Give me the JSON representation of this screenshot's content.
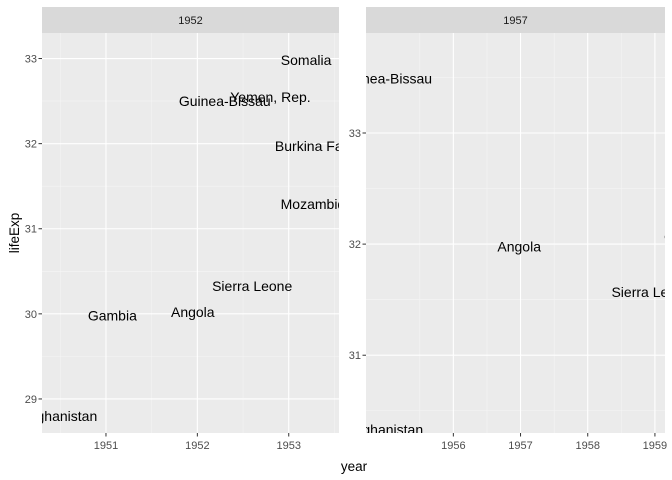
{
  "chart_data": {
    "type": "scatter",
    "style": "ggplot2-facet-text-labels",
    "colors": {
      "panel": "#EBEBEB",
      "grid_major": "#FFFFFF",
      "grid_minor": "#F5F5F5",
      "strip": "#D9D9D9",
      "text": "#000000",
      "tick_text": "#4D4D4D"
    },
    "xlabel": "year",
    "ylabel": "lifeExp",
    "facets": [
      {
        "strip": "1952",
        "xlim": [
          1950.3,
          1953.55
        ],
        "ylim": [
          28.6,
          33.3
        ],
        "xticks": [
          1951,
          1952,
          1953
        ],
        "yticks": [
          29,
          30,
          31,
          32,
          33
        ],
        "points": [
          {
            "label": "Afghanistan",
            "x": 1950.5,
            "y": 28.8
          },
          {
            "label": "Gambia",
            "x": 1951.07,
            "y": 29.98
          },
          {
            "label": "Angola",
            "x": 1951.95,
            "y": 30.02
          },
          {
            "label": "Sierra Leone",
            "x": 1952.6,
            "y": 30.33
          },
          {
            "label": "Mozambique",
            "x": 1953.35,
            "y": 31.29
          },
          {
            "label": "Burkina Faso",
            "x": 1953.3,
            "y": 31.97
          },
          {
            "label": "Guinea-Bissau",
            "x": 1952.3,
            "y": 32.5
          },
          {
            "label": "Yemen, Rep.",
            "x": 1952.8,
            "y": 32.55
          },
          {
            "label": "Somalia",
            "x": 1953.19,
            "y": 32.98
          }
        ]
      },
      {
        "strip": "1957",
        "xlim": [
          1954.7,
          1959.15
        ],
        "ylim": [
          30.3,
          33.9
        ],
        "xticks": [
          1956,
          1957,
          1958,
          1959
        ],
        "yticks": [
          31,
          32,
          33
        ],
        "points": [
          {
            "label": "Afghanistan",
            "x": 1955.0,
            "y": 30.33
          },
          {
            "label": "Angola",
            "x": 1956.98,
            "y": 31.98
          },
          {
            "label": "Sierra Leone",
            "x": 1958.95,
            "y": 31.57
          },
          {
            "label": "Gambia",
            "x": 1959.5,
            "y": 32.07
          },
          {
            "label": "Guinea-Bissau",
            "x": 1955.0,
            "y": 33.49
          }
        ]
      }
    ]
  }
}
